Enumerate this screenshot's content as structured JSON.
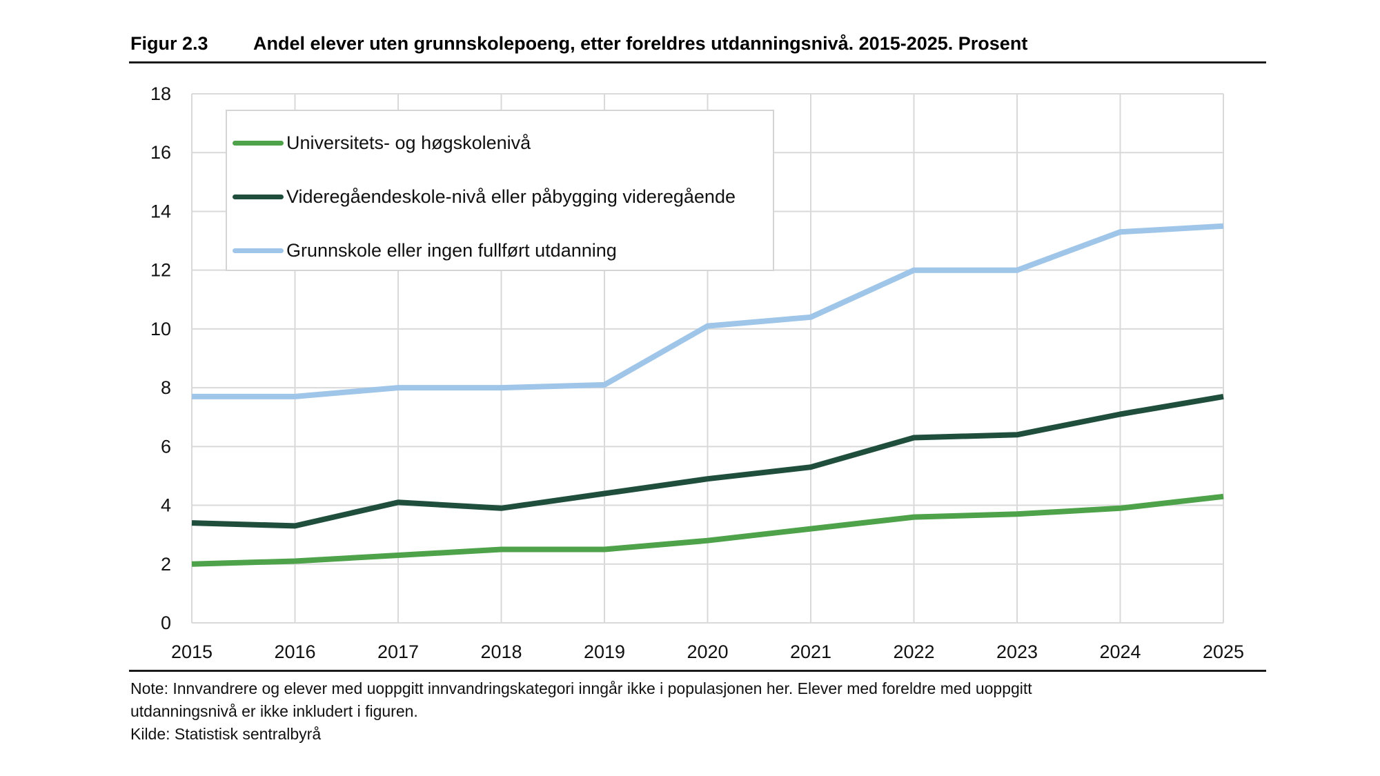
{
  "header": {
    "figure_number": "Figur 2.3",
    "title": "Andel elever uten grunnskolepoeng, etter foreldres utdanningsnivå. 2015-2025. Prosent"
  },
  "footer": {
    "note_line1": "Note: Innvandrere og elever med uoppgitt innvandringskategori inngår ikke i populasjonen her. Elever med foreldre med uoppgitt",
    "note_line2": "utdanningsnivå er ikke inkludert i figuren.",
    "source": "Kilde: Statistisk sentralbyrå"
  },
  "chart_data": {
    "type": "line",
    "title": "Andel elever uten grunnskolepoeng, etter foreldres utdanningsnivå. 2015-2025. Prosent",
    "xlabel": "",
    "ylabel": "",
    "x": [
      "2015",
      "2016",
      "2017",
      "2018",
      "2019",
      "2020",
      "2021",
      "2022",
      "2023",
      "2024",
      "2025"
    ],
    "ylim": [
      0,
      18
    ],
    "yticks": [
      0,
      2,
      4,
      6,
      8,
      10,
      12,
      14,
      16,
      18
    ],
    "grid": true,
    "legend_position": "top-left",
    "series": [
      {
        "name": "Universitets- og høgskolenivå",
        "color": "#4ea24a",
        "values": [
          2.0,
          2.1,
          2.3,
          2.5,
          2.5,
          2.8,
          3.2,
          3.6,
          3.7,
          3.9,
          4.3
        ]
      },
      {
        "name": "Videregåendeskole-nivå eller påbygging videregående",
        "color": "#1f4e3d",
        "values": [
          3.4,
          3.3,
          4.1,
          3.9,
          4.4,
          4.9,
          5.3,
          6.3,
          6.4,
          7.1,
          7.7
        ]
      },
      {
        "name": "Grunnskole eller ingen fullført utdanning",
        "color": "#9fc5e8",
        "values": [
          7.7,
          7.7,
          8.0,
          8.0,
          8.1,
          10.1,
          10.4,
          12.0,
          12.0,
          13.3,
          13.5
        ]
      }
    ]
  }
}
